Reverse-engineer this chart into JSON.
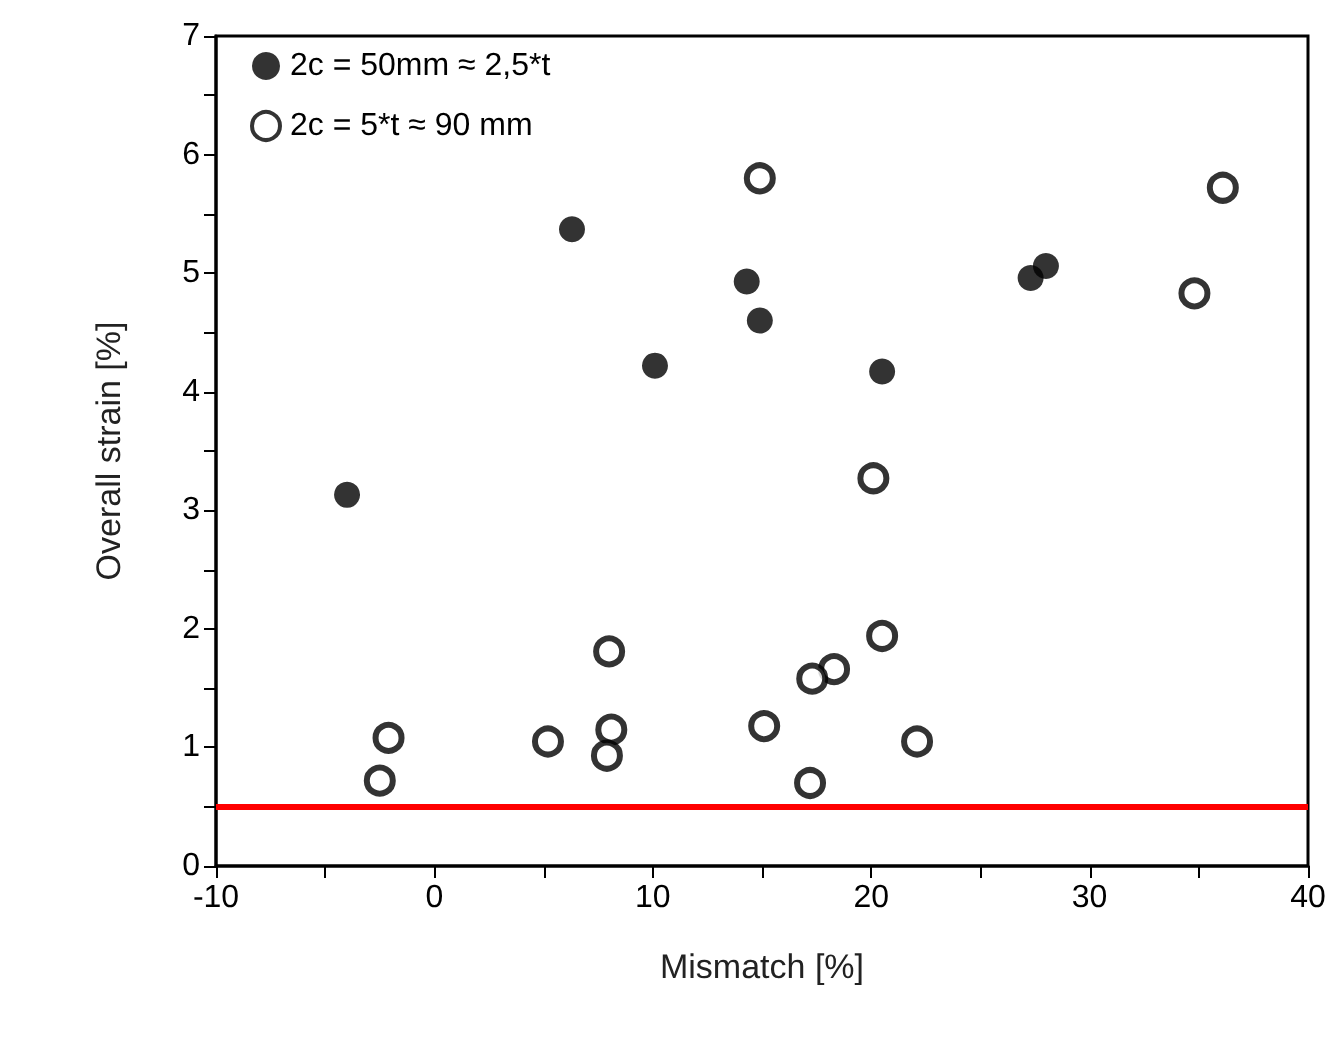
{
  "chart_data": {
    "type": "scatter",
    "xlabel": "Mismatch [%]",
    "ylabel": "Overall strain [%]",
    "series": [
      {
        "name": "2c = 50mm ≈ 2,5*t",
        "color": "#000000",
        "x": [
          -4,
          6.3,
          10.1,
          14.3,
          14.9,
          20.5,
          27.3,
          28
        ],
        "values": [
          3.13,
          5.37,
          4.22,
          4.93,
          4.6,
          4.17,
          4.96,
          5.06
        ]
      },
      {
        "name": "2c = 5*t ≈ 90 mm",
        "color": "#ffffff",
        "x": [
          14.9,
          36.1,
          34.8,
          20.1,
          20.5,
          18.3,
          17.3,
          8,
          8.1,
          7.9,
          5.2,
          -2.1,
          -2.5,
          15.1,
          17.2,
          22.1
        ],
        "values": [
          5.8,
          5.72,
          4.83,
          3.27,
          1.94,
          1.66,
          1.58,
          1.81,
          1.15,
          0.93,
          1.05,
          1.08,
          0.72,
          1.18,
          0.7,
          1.05
        ]
      }
    ],
    "xlim": [
      -10,
      40
    ],
    "xticks": [
      -10,
      {
        "value": -5,
        "label": null
      },
      0,
      {
        "value": 5,
        "label": null
      },
      10,
      {
        "value": 15,
        "label": null
      },
      20,
      {
        "value": 25,
        "label": null
      },
      30,
      {
        "value": 35,
        "label": null
      },
      40
    ],
    "ylim": [
      0,
      7
    ],
    "yticks": [
      0,
      {
        "value": 0.5,
        "label": null
      },
      1,
      {
        "value": 1.5,
        "label": null
      },
      2,
      {
        "value": 2.5,
        "label": null
      },
      3,
      {
        "value": 3.5,
        "label": null
      },
      4,
      {
        "value": 4.5,
        "label": null
      },
      5,
      {
        "value": 5.5,
        "label": null
      },
      6,
      {
        "value": 6.5,
        "label": null
      },
      7
    ],
    "ref_lines": [
      {
        "axis": "y",
        "value": 0.5,
        "label": null,
        "color": "#ff0000"
      }
    ],
    "grid": false,
    "legend": "top left",
    "marker": "circle"
  }
}
